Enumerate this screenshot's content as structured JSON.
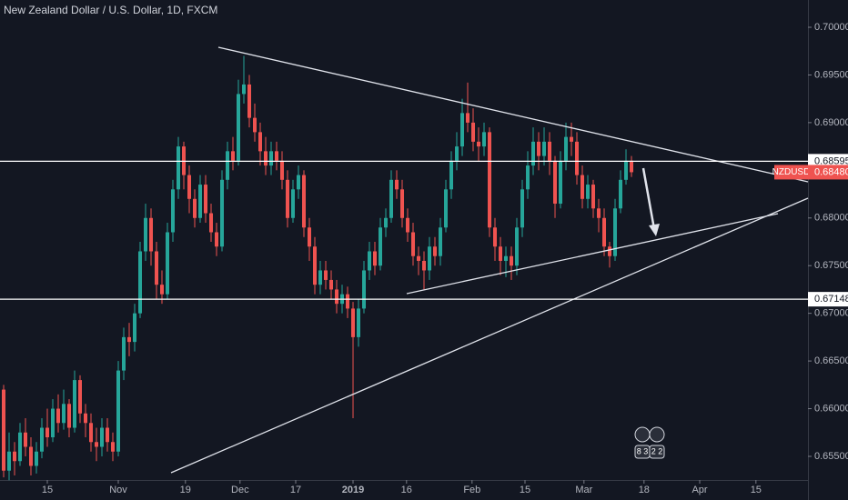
{
  "chart_data": {
    "type": "candlestick",
    "title": "New Zealand Dollar / U.S. Dollar, 1D, FXCM",
    "xlim": [
      -0.667,
      147.33
    ],
    "xticks": [
      {
        "value": 8,
        "label": "15"
      },
      {
        "value": 21,
        "label": "Nov"
      },
      {
        "value": 33.3,
        "label": "19"
      },
      {
        "value": 43.3,
        "label": "Dec"
      },
      {
        "value": 53.5,
        "label": "17"
      },
      {
        "value": 64,
        "label": "2019"
      },
      {
        "value": 73.8,
        "label": "16"
      },
      {
        "value": 85.8,
        "label": "Feb"
      },
      {
        "value": 95.5,
        "label": "15"
      },
      {
        "value": 106.3,
        "label": "Mar"
      },
      {
        "value": 117.3,
        "label": "18"
      },
      {
        "value": 127.5,
        "label": "Apr"
      },
      {
        "value": 137.8,
        "label": "15"
      }
    ],
    "ylim": [
      0.65252,
      0.70286
    ],
    "yticks": [
      {
        "value": 0.655,
        "label": "0.65500"
      },
      {
        "value": 0.66,
        "label": "0.66000"
      },
      {
        "value": 0.665,
        "label": "0.66500"
      },
      {
        "value": 0.67,
        "label": "0.67000"
      },
      {
        "value": 0.675,
        "label": "0.67500"
      },
      {
        "value": 0.68,
        "label": "0.68000"
      },
      {
        "value": 0.685,
        "label": "0.68500"
      },
      {
        "value": 0.69,
        "label": "0.69000"
      },
      {
        "value": 0.695,
        "label": "0.69500"
      },
      {
        "value": 0.7,
        "label": "0.70000"
      }
    ],
    "up_color": "#26a69a",
    "down_color": "#ef5350",
    "open": [
      0.662,
      0.6535,
      0.6555,
      0.6545,
      0.6575,
      0.656,
      0.654,
      0.6555,
      0.658,
      0.657,
      0.66,
      0.6585,
      0.6605,
      0.658,
      0.663,
      0.6595,
      0.6585,
      0.6565,
      0.656,
      0.658,
      0.6565,
      0.6555,
      0.664,
      0.6675,
      0.667,
      0.67,
      0.6765,
      0.68,
      0.6765,
      0.673,
      0.672,
      0.6785,
      0.683,
      0.6875,
      0.6845,
      0.682,
      0.68,
      0.6835,
      0.6805,
      0.6785,
      0.677,
      0.684,
      0.687,
      0.686,
      0.693,
      0.694,
      0.6905,
      0.689,
      0.687,
      0.6855,
      0.687,
      0.686,
      0.684,
      0.68,
      0.683,
      0.6845,
      0.679,
      0.677,
      0.673,
      0.6745,
      0.6735,
      0.6725,
      0.671,
      0.672,
      0.6705,
      0.6675,
      0.6705,
      0.6745,
      0.6765,
      0.675,
      0.679,
      0.68,
      0.684,
      0.683,
      0.68,
      0.6785,
      0.676,
      0.6755,
      0.6745,
      0.677,
      0.676,
      0.679,
      0.683,
      0.686,
      0.6875,
      0.691,
      0.69,
      0.688,
      0.6875,
      0.689,
      0.679,
      0.677,
      0.6755,
      0.676,
      0.675,
      0.679,
      0.683,
      0.6855,
      0.688,
      0.6865,
      0.688,
      0.686,
      0.6815,
      0.686,
      0.6885,
      0.688,
      0.6845,
      0.682,
      0.6835,
      0.681,
      0.68,
      0.677,
      0.676,
      0.681,
      0.684,
      0.686
    ],
    "high": [
      0.6625,
      0.6575,
      0.6565,
      0.6585,
      0.659,
      0.657,
      0.6565,
      0.659,
      0.66,
      0.661,
      0.6615,
      0.662,
      0.661,
      0.664,
      0.6635,
      0.6605,
      0.6595,
      0.658,
      0.659,
      0.659,
      0.6575,
      0.665,
      0.6685,
      0.669,
      0.671,
      0.6775,
      0.6815,
      0.681,
      0.6775,
      0.6745,
      0.6795,
      0.684,
      0.6885,
      0.688,
      0.6855,
      0.683,
      0.6845,
      0.6845,
      0.6815,
      0.6795,
      0.685,
      0.688,
      0.6885,
      0.6945,
      0.697,
      0.695,
      0.692,
      0.69,
      0.6885,
      0.688,
      0.688,
      0.687,
      0.685,
      0.684,
      0.6855,
      0.685,
      0.68,
      0.678,
      0.6755,
      0.6755,
      0.6745,
      0.6735,
      0.673,
      0.6728,
      0.6712,
      0.6715,
      0.6755,
      0.6775,
      0.6775,
      0.68,
      0.681,
      0.685,
      0.685,
      0.684,
      0.681,
      0.6795,
      0.677,
      0.6765,
      0.678,
      0.678,
      0.68,
      0.684,
      0.687,
      0.689,
      0.6925,
      0.6942,
      0.6915,
      0.6895,
      0.69,
      0.6895,
      0.68,
      0.678,
      0.677,
      0.677,
      0.68,
      0.684,
      0.687,
      0.6895,
      0.689,
      0.6895,
      0.689,
      0.6865,
      0.687,
      0.69,
      0.69,
      0.689,
      0.6855,
      0.6845,
      0.684,
      0.682,
      0.681,
      0.6775,
      0.682,
      0.685,
      0.6872,
      0.6865
    ],
    "low": [
      0.6528,
      0.6525,
      0.653,
      0.654,
      0.655,
      0.653,
      0.6532,
      0.6548,
      0.656,
      0.6565,
      0.6575,
      0.6578,
      0.657,
      0.6575,
      0.6585,
      0.657,
      0.6555,
      0.6545,
      0.655,
      0.6555,
      0.6545,
      0.655,
      0.663,
      0.6655,
      0.666,
      0.6695,
      0.6755,
      0.675,
      0.6715,
      0.671,
      0.6715,
      0.6775,
      0.682,
      0.683,
      0.6805,
      0.679,
      0.6795,
      0.6795,
      0.6775,
      0.676,
      0.6765,
      0.683,
      0.685,
      0.6855,
      0.692,
      0.6895,
      0.688,
      0.6855,
      0.6845,
      0.6845,
      0.685,
      0.683,
      0.679,
      0.6795,
      0.682,
      0.678,
      0.6755,
      0.672,
      0.672,
      0.6725,
      0.6715,
      0.67,
      0.67,
      0.6695,
      0.659,
      0.6665,
      0.67,
      0.6735,
      0.674,
      0.6745,
      0.678,
      0.6795,
      0.682,
      0.679,
      0.6775,
      0.675,
      0.674,
      0.6725,
      0.6735,
      0.675,
      0.675,
      0.6785,
      0.682,
      0.685,
      0.6865,
      0.689,
      0.687,
      0.686,
      0.6865,
      0.678,
      0.6755,
      0.674,
      0.6738,
      0.6735,
      0.674,
      0.678,
      0.682,
      0.6845,
      0.685,
      0.6855,
      0.6845,
      0.68,
      0.681,
      0.685,
      0.6865,
      0.6835,
      0.681,
      0.681,
      0.68,
      0.6785,
      0.676,
      0.6748,
      0.6755,
      0.6805,
      0.6835,
      0.6843
    ],
    "close": [
      0.6535,
      0.6555,
      0.6545,
      0.6575,
      0.656,
      0.654,
      0.6555,
      0.658,
      0.657,
      0.66,
      0.6585,
      0.6605,
      0.658,
      0.663,
      0.6595,
      0.6585,
      0.6565,
      0.656,
      0.658,
      0.6565,
      0.6555,
      0.664,
      0.6675,
      0.667,
      0.67,
      0.6765,
      0.68,
      0.6765,
      0.673,
      0.672,
      0.6785,
      0.683,
      0.6875,
      0.6845,
      0.682,
      0.68,
      0.6835,
      0.6805,
      0.6785,
      0.677,
      0.684,
      0.687,
      0.686,
      0.693,
      0.694,
      0.6905,
      0.689,
      0.687,
      0.6855,
      0.687,
      0.686,
      0.684,
      0.68,
      0.683,
      0.6845,
      0.679,
      0.677,
      0.673,
      0.6745,
      0.6735,
      0.6725,
      0.671,
      0.672,
      0.6705,
      0.6675,
      0.6705,
      0.6745,
      0.6765,
      0.675,
      0.679,
      0.68,
      0.684,
      0.683,
      0.68,
      0.6785,
      0.676,
      0.6755,
      0.6745,
      0.677,
      0.676,
      0.679,
      0.683,
      0.686,
      0.6875,
      0.691,
      0.69,
      0.688,
      0.6875,
      0.689,
      0.679,
      0.677,
      0.6755,
      0.676,
      0.675,
      0.679,
      0.683,
      0.6855,
      0.688,
      0.6865,
      0.688,
      0.686,
      0.6815,
      0.686,
      0.6885,
      0.688,
      0.6845,
      0.682,
      0.6835,
      0.681,
      0.68,
      0.677,
      0.676,
      0.681,
      0.684,
      0.686,
      0.6848
    ],
    "levels": [
      {
        "value": 0.68595,
        "label": "0.68595"
      },
      {
        "value": 0.67148,
        "label": "0.67148"
      }
    ],
    "last": {
      "name": "NZDUSD",
      "value": 0.6848,
      "label": "0.68480"
    },
    "badges": [
      "8 3",
      "2 2"
    ]
  }
}
